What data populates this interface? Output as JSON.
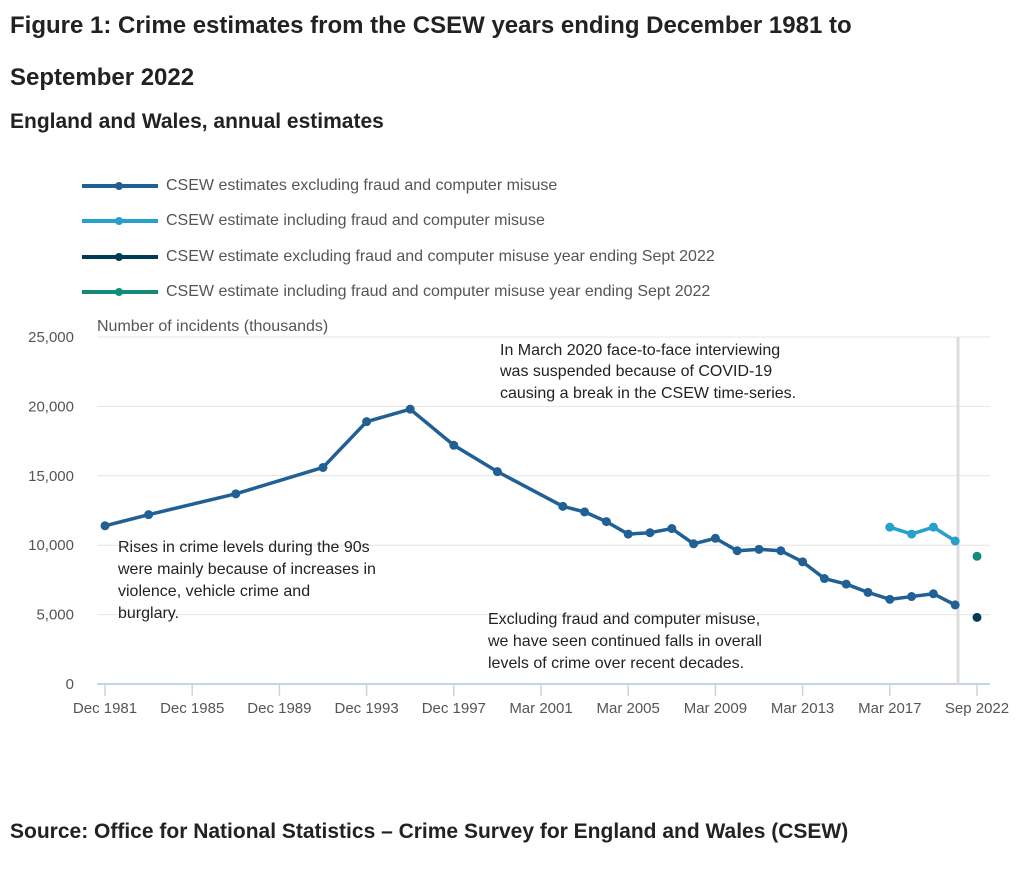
{
  "title": "Figure 1: Crime estimates from the CSEW years ending December 1981 to September 2022",
  "subtitle": "England and Wales, annual estimates",
  "source": "Source: Office for National Statistics – Crime Survey for England and Wales (CSEW)",
  "chart_data": {
    "type": "line",
    "ylabel": "Number of incidents (thousands)",
    "ylim": [
      0,
      25000
    ],
    "yticks": [
      "0",
      "5,000",
      "10,000",
      "15,000",
      "20,000",
      "25,000"
    ],
    "xticks": [
      "Dec 1981",
      "Dec 1985",
      "Dec 1989",
      "Dec 1993",
      "Dec 1997",
      "Mar 2001",
      "Mar 2005",
      "Mar 2009",
      "Mar 2013",
      "Mar 2017",
      "Sep 2022"
    ],
    "grid": true,
    "legend": "top",
    "series": [
      {
        "name": "CSEW estimates excluding fraud and computer misuse",
        "color": "#206095",
        "x": [
          "Dec 1981",
          "Dec 1983",
          "Dec 1987",
          "Dec 1991",
          "Dec 1993",
          "Dec 1995",
          "Dec 1997",
          "Dec 1999",
          "Mar 2002",
          "Mar 2003",
          "Mar 2004",
          "Mar 2005",
          "Mar 2006",
          "Mar 2007",
          "Mar 2008",
          "Mar 2009",
          "Mar 2010",
          "Mar 2011",
          "Mar 2012",
          "Mar 2013",
          "Mar 2014",
          "Mar 2015",
          "Mar 2016",
          "Mar 2017",
          "Mar 2018",
          "Mar 2019",
          "Mar 2020"
        ],
        "y": [
          11400,
          12200,
          13700,
          15600,
          18900,
          19800,
          17200,
          15300,
          12800,
          12400,
          11700,
          10800,
          10900,
          11200,
          10100,
          10500,
          9600,
          9700,
          9600,
          8800,
          7600,
          7200,
          6600,
          6100,
          6300,
          6500,
          5700
        ]
      },
      {
        "name": "CSEW estimate including fraud and computer misuse",
        "color": "#27a0cc",
        "x": [
          "Mar 2017",
          "Mar 2018",
          "Mar 2019",
          "Mar 2020"
        ],
        "y": [
          11300,
          10800,
          11300,
          10300
        ]
      },
      {
        "name": "CSEW estimate excluding fraud and computer misuse year ending Sept 2022",
        "color": "#003c57",
        "x": [
          "Sep 2022"
        ],
        "y": [
          4800
        ]
      },
      {
        "name": "CSEW estimate including fraud and computer misuse year ending Sept 2022",
        "color": "#118c7b",
        "x": [
          "Sep 2022"
        ],
        "y": [
          9200
        ]
      }
    ],
    "annotations": [
      "In March 2020 face-to-face interviewing was suspended because of COVID-19 causing a break in the CSEW time-series.",
      "Rises in crime levels during the 90s were mainly because of increases in violence, vehicle crime and burglary.",
      "Excluding fraud and computer misuse, we have seen continued falls in overall levels of crime over recent decades."
    ]
  }
}
